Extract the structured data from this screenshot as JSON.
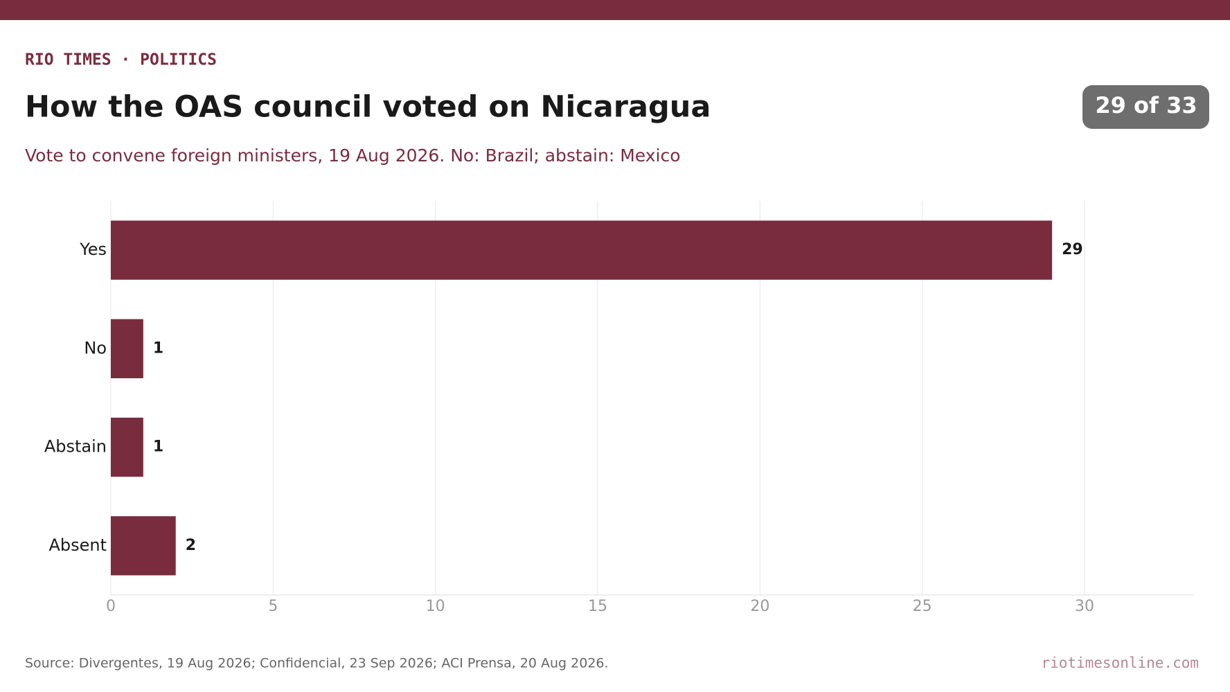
{
  "header": {
    "kicker": "RIO TIMES · POLITICS",
    "badge": "29 of 33"
  },
  "chart_data": {
    "type": "bar",
    "orientation": "horizontal",
    "title": "How the OAS council voted on Nicaragua",
    "subtitle": "Vote to convene foreign ministers, 19 Aug 2026. No: Brazil; abstain: Mexico",
    "categories": [
      "Yes",
      "No",
      "Abstain",
      "Absent"
    ],
    "values": [
      29,
      1,
      1,
      2
    ],
    "color": "#7a2c3f",
    "xlim": [
      0,
      33.35
    ],
    "xticks": [
      0,
      5,
      10,
      15,
      20,
      25,
      30
    ],
    "grid": true
  },
  "footer": {
    "source": "Source: Divergentes, 19 Aug 2026; Confidencial, 23 Sep 2026; ACI Prensa, 20 Aug 2026.",
    "site": "riotimesonline.com"
  }
}
